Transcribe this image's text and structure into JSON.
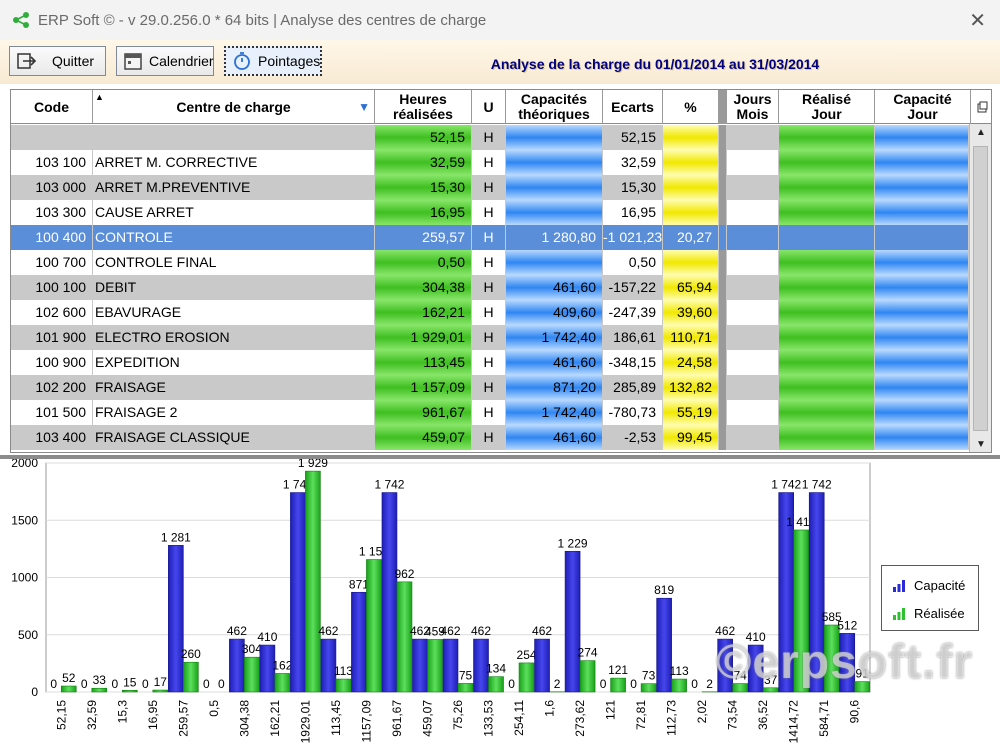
{
  "window": {
    "title": "ERP Soft © - v 29.0.256.0 * 64 bits | Analyse des centres de charge"
  },
  "toolbar": {
    "quit_label": "Quitter",
    "calendar_label": "Calendrier",
    "pointages_label": "Pointages",
    "banner": "Analyse de la charge du 01/01/2014 au 31/03/2014"
  },
  "grid": {
    "headers": {
      "code": "Code",
      "centre": "Centre de charge",
      "heures": "Heures réalisées",
      "u": "U",
      "capacites": "Capacités théoriques",
      "ecarts": "Ecarts",
      "pct": "%",
      "jours": "Jours Mois",
      "realise": "Réalisé Jour",
      "capacite": "Capacité Jour"
    },
    "rows": [
      {
        "code": "",
        "centre": "",
        "heures": "52,15",
        "u": "H",
        "cap": "",
        "ecart": "52,15",
        "pct": ""
      },
      {
        "code": "103 100",
        "centre": "ARRET M. CORRECTIVE",
        "heures": "32,59",
        "u": "H",
        "cap": "",
        "ecart": "32,59",
        "pct": ""
      },
      {
        "code": "103 000",
        "centre": "ARRET M.PREVENTIVE",
        "heures": "15,30",
        "u": "H",
        "cap": "",
        "ecart": "15,30",
        "pct": ""
      },
      {
        "code": "103 300",
        "centre": "CAUSE ARRET",
        "heures": "16,95",
        "u": "H",
        "cap": "",
        "ecart": "16,95",
        "pct": ""
      },
      {
        "code": "100 400",
        "centre": "CONTROLE",
        "heures": "259,57",
        "u": "H",
        "cap": "1 280,80",
        "ecart": "-1 021,23",
        "pct": "20,27"
      },
      {
        "code": "100 700",
        "centre": "CONTROLE FINAL",
        "heures": "0,50",
        "u": "H",
        "cap": "",
        "ecart": "0,50",
        "pct": ""
      },
      {
        "code": "100 100",
        "centre": "DEBIT",
        "heures": "304,38",
        "u": "H",
        "cap": "461,60",
        "ecart": "-157,22",
        "pct": "65,94"
      },
      {
        "code": "102 600",
        "centre": "EBAVURAGE",
        "heures": "162,21",
        "u": "H",
        "cap": "409,60",
        "ecart": "-247,39",
        "pct": "39,60"
      },
      {
        "code": "101 900",
        "centre": "ELECTRO EROSION",
        "heures": "1 929,01",
        "u": "H",
        "cap": "1 742,40",
        "ecart": "186,61",
        "pct": "110,71"
      },
      {
        "code": "100 900",
        "centre": "EXPEDITION",
        "heures": "113,45",
        "u": "H",
        "cap": "461,60",
        "ecart": "-348,15",
        "pct": "24,58"
      },
      {
        "code": "102 200",
        "centre": "FRAISAGE",
        "heures": "1 157,09",
        "u": "H",
        "cap": "871,20",
        "ecart": "285,89",
        "pct": "132,82"
      },
      {
        "code": "101 500",
        "centre": "FRAISAGE 2",
        "heures": "961,67",
        "u": "H",
        "cap": "1 742,40",
        "ecart": "-780,73",
        "pct": "55,19"
      },
      {
        "code": "103 400",
        "centre": "FRAISAGE CLASSIQUE",
        "heures": "459,07",
        "u": "H",
        "cap": "461,60",
        "ecart": "-2,53",
        "pct": "99,45"
      }
    ]
  },
  "legend": {
    "capacite": "Capacité",
    "realisee": "Réalisée"
  },
  "watermark": "©erpsoft.fr",
  "colors": {
    "capacite": "#2a2ad8",
    "realisee": "#2fc02f",
    "selection": "#5a8ed8"
  },
  "chart_data": {
    "type": "bar",
    "ylim": [
      0,
      2000
    ],
    "yticks": [
      0,
      500,
      1000,
      1500,
      2000
    ],
    "categories": [
      "52,15",
      "32,59",
      "15,3",
      "16,95",
      "259,57",
      "0,5",
      "304,38",
      "162,21",
      "1929,01",
      "113,45",
      "1157,09",
      "961,67",
      "459,07",
      "75,26",
      "133,53",
      "254,11",
      "1,6",
      "273,62",
      "121",
      "72,81",
      "112,73",
      "2,02",
      "73,54",
      "36,52",
      "1414,72",
      "584,71",
      "90,6"
    ],
    "series": [
      {
        "name": "Capacité",
        "values": [
          0,
          0,
          0,
          0,
          1281,
          0,
          462,
          410,
          1742,
          462,
          871,
          1742,
          462,
          462,
          462,
          0,
          462,
          1229,
          0,
          0,
          819,
          0,
          462,
          410,
          1742,
          1742,
          512
        ],
        "labels": [
          "0",
          "0",
          "0",
          "0",
          "1 281",
          "0",
          "462",
          "410",
          "1 742",
          "462",
          "871",
          "1 742",
          "462",
          "462",
          "462",
          "0",
          "462",
          "1 229",
          "0",
          "0",
          "819",
          "0",
          "462",
          "410",
          "1 742",
          "1 742",
          "512"
        ]
      },
      {
        "name": "Réalisée",
        "values": [
          52,
          33,
          15,
          17,
          260,
          0,
          304,
          162,
          1929,
          113,
          1157,
          962,
          459,
          75,
          134,
          254,
          2,
          274,
          121,
          73,
          113,
          2,
          74,
          37,
          1415,
          585,
          91
        ],
        "labels": [
          "52",
          "33",
          "15",
          "17",
          "260",
          "0",
          "304",
          "162",
          "1 929",
          "113",
          "1 157",
          "962",
          "459",
          "75",
          "134",
          "254",
          "2",
          "274",
          "121",
          "73",
          "113",
          "2",
          "74",
          "37",
          "1 415",
          "585",
          "91"
        ]
      }
    ]
  }
}
